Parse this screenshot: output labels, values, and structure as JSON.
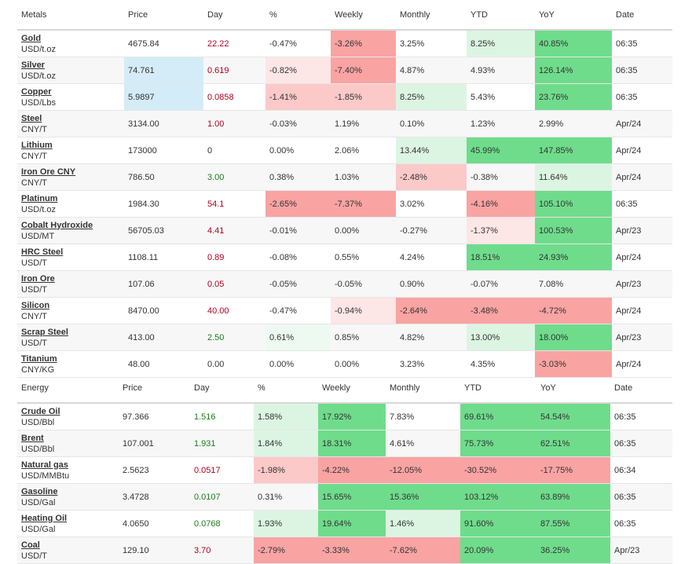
{
  "metals": {
    "headers": {
      "name": "Metals",
      "price": "Price",
      "day": "Day",
      "pct": "%",
      "weekly": "Weekly",
      "monthly": "Monthly",
      "ytd": "YTD",
      "yoy": "YoY",
      "date": "Date"
    },
    "rows": [
      {
        "name": "Gold",
        "unit": "USD/t.oz",
        "price": "4675.84",
        "day": "22.22",
        "pct": "-0.47%",
        "weekly": "-3.26%",
        "monthly": "3.25%",
        "ytd": "8.25%",
        "yoy": "40.85%",
        "date": "06:35"
      },
      {
        "name": "Silver",
        "unit": "USD/t.oz",
        "price": "74.761",
        "day": "0.619",
        "pct": "-0.82%",
        "weekly": "-7.40%",
        "monthly": "4.87%",
        "ytd": "4.93%",
        "yoy": "126.14%",
        "date": "06:35"
      },
      {
        "name": "Copper",
        "unit": "USD/Lbs",
        "price": "5.9897",
        "day": "0.0858",
        "pct": "-1.41%",
        "weekly": "-1.85%",
        "monthly": "8.25%",
        "ytd": "5.43%",
        "yoy": "23.76%",
        "date": "06:35"
      },
      {
        "name": "Steel",
        "unit": "CNY/T",
        "price": "3134.00",
        "day": "1.00",
        "pct": "-0.03%",
        "weekly": "1.19%",
        "monthly": "0.10%",
        "ytd": "1.23%",
        "yoy": "2.99%",
        "date": "Apr/24"
      },
      {
        "name": "Lithium",
        "unit": "CNY/T",
        "price": "173000",
        "day": "0",
        "pct": "0.00%",
        "weekly": "2.06%",
        "monthly": "13.44%",
        "ytd": "45.99%",
        "yoy": "147.85%",
        "date": "Apr/24"
      },
      {
        "name": "Iron Ore CNY",
        "unit": "CNY/T",
        "price": "786.50",
        "day": "3.00",
        "pct": "0.38%",
        "weekly": "1.03%",
        "monthly": "-2.48%",
        "ytd": "-0.38%",
        "yoy": "11.64%",
        "date": "Apr/24"
      },
      {
        "name": "Platinum",
        "unit": "USD/t.oz",
        "price": "1984.30",
        "day": "54.1",
        "pct": "-2.65%",
        "weekly": "-7.37%",
        "monthly": "3.02%",
        "ytd": "-4.16%",
        "yoy": "105.10%",
        "date": "06:35"
      },
      {
        "name": "Cobalt Hydroxide",
        "unit": "USD/MT",
        "price": "56705.03",
        "day": "4.41",
        "pct": "-0.01%",
        "weekly": "0.00%",
        "monthly": "-0.27%",
        "ytd": "-1.37%",
        "yoy": "100.53%",
        "date": "Apr/23"
      },
      {
        "name": "HRC Steel",
        "unit": "USD/T",
        "price": "1108.11",
        "day": "0.89",
        "pct": "-0.08%",
        "weekly": "0.55%",
        "monthly": "4.24%",
        "ytd": "18.51%",
        "yoy": "24.93%",
        "date": "Apr/24"
      },
      {
        "name": "Iron Ore",
        "unit": "USD/T",
        "price": "107.06",
        "day": "0.05",
        "pct": "-0.05%",
        "weekly": "-0.05%",
        "monthly": "0.90%",
        "ytd": "-0.07%",
        "yoy": "7.08%",
        "date": "Apr/23"
      },
      {
        "name": "Silicon",
        "unit": "CNY/T",
        "price": "8470.00",
        "day": "40.00",
        "pct": "-0.47%",
        "weekly": "-0.94%",
        "monthly": "-2.64%",
        "ytd": "-3.48%",
        "yoy": "-4.72%",
        "date": "Apr/24"
      },
      {
        "name": "Scrap Steel",
        "unit": "USD/T",
        "price": "413.00",
        "day": "2.50",
        "pct": "0.61%",
        "weekly": "0.85%",
        "monthly": "4.82%",
        "ytd": "13.00%",
        "yoy": "18.00%",
        "date": "Apr/23"
      },
      {
        "name": "Titanium",
        "unit": "CNY/KG",
        "price": "48.00",
        "day": "0.00",
        "pct": "0.00%",
        "weekly": "0.00%",
        "monthly": "3.23%",
        "ytd": "4.35%",
        "yoy": "-3.03%",
        "date": "Apr/24"
      }
    ]
  },
  "energy": {
    "headers": {
      "name": "Energy",
      "price": "Price",
      "day": "Day",
      "pct": "%",
      "weekly": "Weekly",
      "monthly": "Monthly",
      "ytd": "YTD",
      "yoy": "YoY",
      "date": "Date"
    },
    "rows": [
      {
        "name": "Crude Oil",
        "unit": "USD/Bbl",
        "price": "97.366",
        "day": "1.516",
        "pct": "1.58%",
        "weekly": "17.92%",
        "monthly": "7.83%",
        "ytd": "69.61%",
        "yoy": "54.54%",
        "date": "06:35"
      },
      {
        "name": "Brent",
        "unit": "USD/Bbl",
        "price": "107.001",
        "day": "1.931",
        "pct": "1.84%",
        "weekly": "18.31%",
        "monthly": "4.61%",
        "ytd": "75.73%",
        "yoy": "62.51%",
        "date": "06:35"
      },
      {
        "name": "Natural gas",
        "unit": "USD/MMBtu",
        "price": "2.5623",
        "day": "0.0517",
        "pct": "-1.98%",
        "weekly": "-4.22%",
        "monthly": "-12.05%",
        "ytd": "-30.52%",
        "yoy": "-17.75%",
        "date": "06:34"
      },
      {
        "name": "Gasoline",
        "unit": "USD/Gal",
        "price": "3.4728",
        "day": "0.0107",
        "pct": "0.31%",
        "weekly": "15.65%",
        "monthly": "15.36%",
        "ytd": "103.12%",
        "yoy": "63.89%",
        "date": "06:35"
      },
      {
        "name": "Heating Oil",
        "unit": "USD/Gal",
        "price": "4.0650",
        "day": "0.0768",
        "pct": "1.93%",
        "weekly": "19.64%",
        "monthly": "1.46%",
        "ytd": "91.60%",
        "yoy": "87.55%",
        "date": "06:35"
      },
      {
        "name": "Coal",
        "unit": "USD/T",
        "price": "129.10",
        "day": "3.70",
        "pct": "-2.79%",
        "weekly": "-3.33%",
        "monthly": "-7.62%",
        "ytd": "20.09%",
        "yoy": "36.25%",
        "date": "Apr/23"
      }
    ]
  },
  "colors": {
    "day_down": "#b0001e",
    "day_up": "#1b7d1b",
    "price_highlight": "#d4ecf8",
    "neg_strong": "#f9a3a3",
    "neg_mid": "#fcc9c9",
    "neg_light": "#fde6e6",
    "pos_strong": "#6fdc8c",
    "pos_mid": "#a7ebb8",
    "pos_light": "#dcf5e2",
    "pos_faint": "#eefaf1"
  },
  "highlighted_price_rows": [
    "Silver",
    "Copper"
  ]
}
